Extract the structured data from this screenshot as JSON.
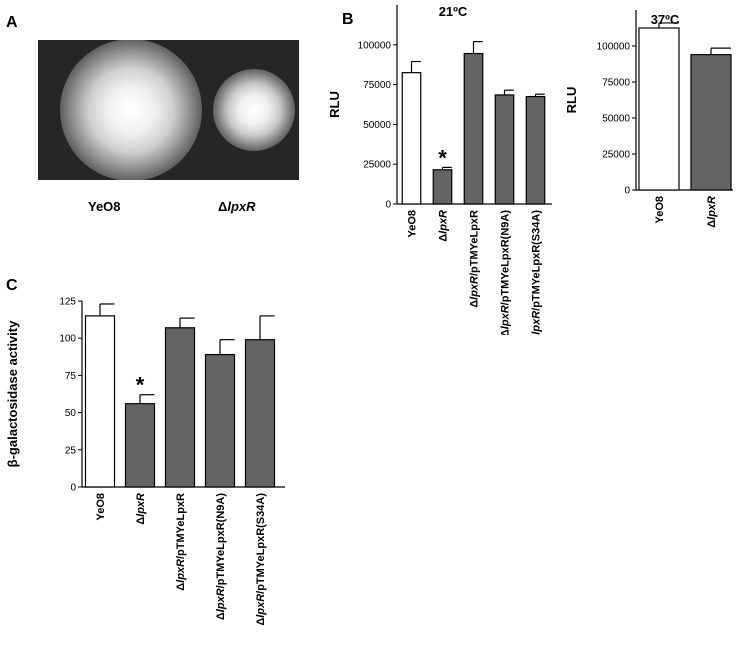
{
  "panels": {
    "A": {
      "letter": "A",
      "labels": [
        {
          "prefix": "",
          "italic": "YeO8",
          "suffix": ""
        },
        {
          "prefix": "Δ",
          "italic": "lpxR",
          "suffix": ""
        }
      ]
    },
    "B": {
      "letter": "B"
    },
    "C": {
      "letter": "C"
    }
  },
  "chart_data": [
    {
      "id": "B-21",
      "type": "bar",
      "title": "21ºC",
      "ylabel": "RLU",
      "ylim": [
        0,
        125000
      ],
      "yticks": [
        0,
        25000,
        50000,
        75000,
        100000
      ],
      "categories": [
        {
          "prefix": "",
          "italic": "",
          "rest": "YeO8"
        },
        {
          "prefix": "Δ",
          "italic": "lpxR",
          "rest": ""
        },
        {
          "prefix": "Δ",
          "italic": "lpxR",
          "rest": "/pTMYeLpxR"
        },
        {
          "prefix": "Δ",
          "italic": "lpxR",
          "rest": "/pTMYeLpxR(N9A)"
        },
        {
          "prefix": "Δ",
          "italic": "lpxR",
          "rest": "/pTMYeLpxR(S34A)"
        }
      ],
      "values": [
        82500,
        21500,
        94500,
        68500,
        67500
      ],
      "errors": [
        7000,
        1500,
        7500,
        3000,
        1500
      ],
      "fills": [
        "#ffffff",
        "#646464",
        "#646464",
        "#646464",
        "#646464"
      ],
      "annotations": [
        {
          "index": 1,
          "text": "*"
        }
      ]
    },
    {
      "id": "B-37",
      "type": "bar",
      "title": "37ºC",
      "ylabel": "RLU",
      "ylim": [
        0,
        125000
      ],
      "yticks": [
        0,
        25000,
        50000,
        75000,
        100000
      ],
      "categories": [
        {
          "prefix": "",
          "italic": "",
          "rest": "YeO8"
        },
        {
          "prefix": "Δ",
          "italic": "lpxR",
          "rest": ""
        }
      ],
      "values": [
        112500,
        94000
      ],
      "errors": [
        3500,
        4500
      ],
      "fills": [
        "#ffffff",
        "#646464"
      ],
      "annotations": []
    },
    {
      "id": "C",
      "type": "bar",
      "title": "",
      "ylabel": "β-galactosidase activity",
      "ylim": [
        0,
        125
      ],
      "yticks": [
        0,
        25,
        50,
        75,
        100,
        125
      ],
      "categories": [
        {
          "prefix": "",
          "italic": "",
          "rest": "YeO8"
        },
        {
          "prefix": "Δ",
          "italic": "lpxR",
          "rest": ""
        },
        {
          "prefix": "Δ",
          "italic": "lpxR",
          "rest": "/pTMYeLpxR"
        },
        {
          "prefix": "Δ",
          "italic": "lpxR",
          "rest": "/pTMYeLpxR(N9A)"
        },
        {
          "prefix": "Δ",
          "italic": "lpxR",
          "rest": "/pTMYeLpxR(S34A)"
        }
      ],
      "values": [
        115,
        56,
        107,
        89,
        99
      ],
      "errors": [
        8,
        6,
        6.5,
        10,
        16
      ],
      "fills": [
        "#ffffff",
        "#646464",
        "#646464",
        "#646464",
        "#646464"
      ],
      "annotations": [
        {
          "index": 1,
          "text": "*"
        }
      ]
    }
  ]
}
